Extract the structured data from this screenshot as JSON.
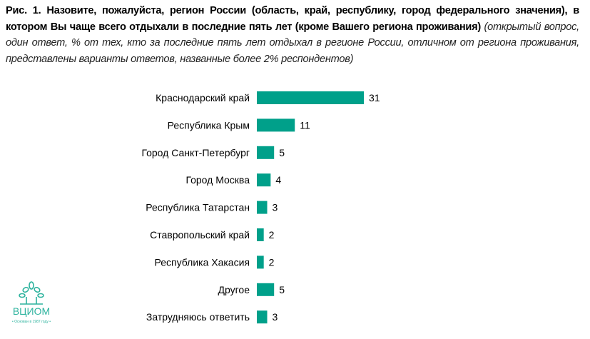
{
  "title": {
    "bold": "Рис. 1. Назовите, пожалуйста, регион России (область, край, республику, город федерального значения), в котором Вы чаще всего отдыхали в последние пять лет (кроме Вашего региона проживания)",
    "italic": "(открытый вопрос, один ответ, % от тех, кто за последние пять лет отдыхал в регионе России, отличном от региона проживания, представлены варианты ответов, названные более 2% респондентов)"
  },
  "chart_data": {
    "type": "bar",
    "orientation": "horizontal",
    "categories": [
      "Краснодарский край",
      "Республика Крым",
      "Город Санкт-Петербург",
      "Город Москва",
      "Республика Татарстан",
      "Ставропольский край",
      "Республика Хакасия",
      "Другое",
      "Затрудняюсь ответить"
    ],
    "values": [
      31,
      11,
      5,
      4,
      3,
      2,
      2,
      5,
      3
    ],
    "bar_color": "#00A08A",
    "grid": false,
    "legend": "none"
  },
  "logo": {
    "name": "ВЦИОМ",
    "tagline": "• Основан в 1987 году •",
    "color": "#2DB39E"
  }
}
